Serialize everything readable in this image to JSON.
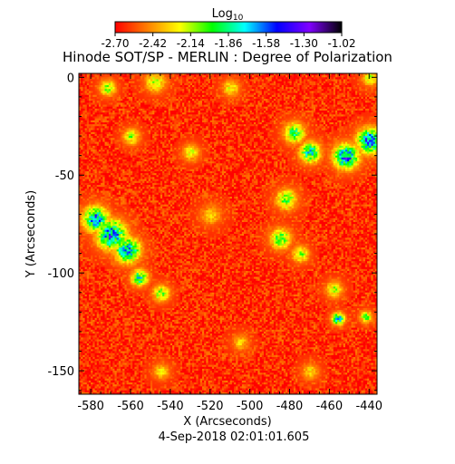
{
  "chart_data": {
    "type": "heatmap",
    "title": "Hinode SOT/SP - MERLIN : Degree of Polarization",
    "colorbar": {
      "label_base": "Log",
      "label_sub": "10",
      "ticks": [
        "-2.70",
        "-2.42",
        "-2.14",
        "-1.86",
        "-1.58",
        "-1.30",
        "-1.02"
      ],
      "range": [
        -2.7,
        -1.02
      ],
      "colormap": [
        "#ff0000",
        "#ff7f00",
        "#ffff00",
        "#00ff00",
        "#00ffff",
        "#0000ff",
        "#8000ff",
        "#000000"
      ]
    },
    "xlabel": "X (Arcseconds)",
    "ylabel": "Y (Arcseconds)",
    "xlim": [
      -586,
      -436
    ],
    "ylim": [
      -162,
      2
    ],
    "xticks": [
      -580,
      -560,
      -540,
      -520,
      -500,
      -480,
      -460,
      -440
    ],
    "yticks": [
      0,
      -50,
      -100,
      -150
    ],
    "xtick_labels": [
      "-580",
      "-560",
      "-540",
      "-520",
      "-500",
      "-480",
      "-460",
      "-440"
    ],
    "ytick_labels": [
      "0",
      "-50",
      "-100",
      "-150"
    ],
    "background_value": -2.62,
    "enhanced_regions": [
      {
        "x": -578,
        "y": -72,
        "peak": -1.45,
        "spread": 6
      },
      {
        "x": -570,
        "y": -80,
        "peak": -1.4,
        "spread": 7
      },
      {
        "x": -562,
        "y": -88,
        "peak": -1.45,
        "spread": 6
      },
      {
        "x": -556,
        "y": -102,
        "peak": -1.7,
        "spread": 4
      },
      {
        "x": -545,
        "y": -110,
        "peak": -1.95,
        "spread": 4
      },
      {
        "x": -572,
        "y": -5,
        "peak": -2.0,
        "spread": 4
      },
      {
        "x": -548,
        "y": -2,
        "peak": -2.05,
        "spread": 5
      },
      {
        "x": -510,
        "y": -5,
        "peak": -2.1,
        "spread": 4
      },
      {
        "x": -560,
        "y": -30,
        "peak": -2.05,
        "spread": 4
      },
      {
        "x": -530,
        "y": -38,
        "peak": -2.1,
        "spread": 4
      },
      {
        "x": -478,
        "y": -28,
        "peak": -1.8,
        "spread": 5
      },
      {
        "x": -470,
        "y": -38,
        "peak": -1.65,
        "spread": 5
      },
      {
        "x": -452,
        "y": -40,
        "peak": -1.4,
        "spread": 6
      },
      {
        "x": -440,
        "y": -32,
        "peak": -1.35,
        "spread": 6
      },
      {
        "x": -482,
        "y": -62,
        "peak": -1.9,
        "spread": 5
      },
      {
        "x": -485,
        "y": -82,
        "peak": -1.85,
        "spread": 5
      },
      {
        "x": -475,
        "y": -90,
        "peak": -2.0,
        "spread": 4
      },
      {
        "x": -458,
        "y": -108,
        "peak": -2.05,
        "spread": 4
      },
      {
        "x": -456,
        "y": -123,
        "peak": -1.55,
        "spread": 3
      },
      {
        "x": -442,
        "y": -122,
        "peak": -1.95,
        "spread": 3
      },
      {
        "x": -440,
        "y": 0,
        "peak": -2.1,
        "spread": 4
      },
      {
        "x": -520,
        "y": -70,
        "peak": -2.25,
        "spread": 5
      },
      {
        "x": -505,
        "y": -135,
        "peak": -2.25,
        "spread": 4
      },
      {
        "x": -545,
        "y": -150,
        "peak": -2.2,
        "spread": 4
      },
      {
        "x": -470,
        "y": -150,
        "peak": -2.2,
        "spread": 4
      }
    ],
    "footer": "4-Sep-2018 02:01:01.605"
  }
}
